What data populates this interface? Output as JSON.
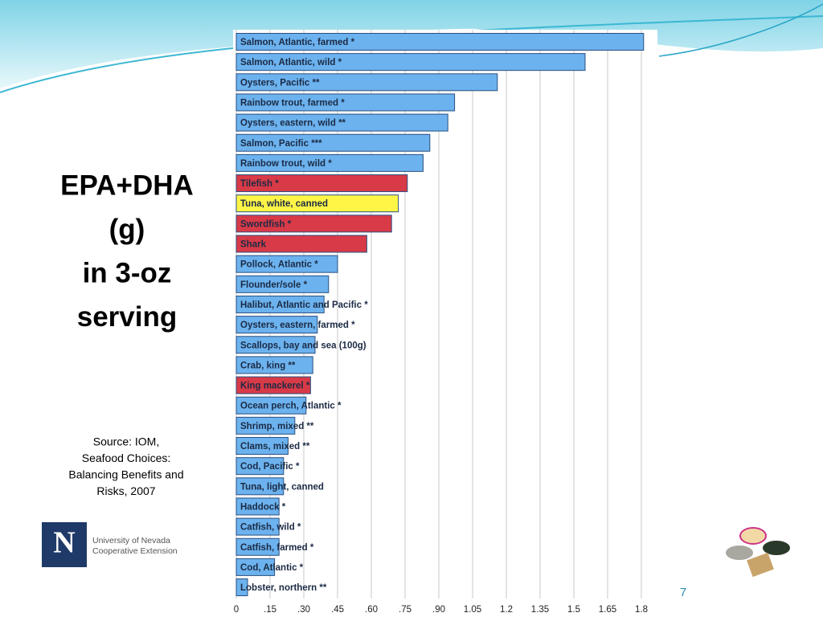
{
  "title_lines": [
    "EPA+DHA",
    "(g)",
    "in 3-oz",
    "serving"
  ],
  "source_lines": [
    "Source: IOM,",
    "Seafood Choices:",
    "Balancing Benefits and",
    "Risks, 2007"
  ],
  "logo": {
    "mark": "N",
    "lines": [
      "University of Nevada",
      "Cooperative Extension"
    ]
  },
  "page_number": "7",
  "chart_data": {
    "type": "hbar",
    "categories": [
      "Salmon, Atlantic, farmed *",
      "Salmon, Atlantic, wild *",
      "Oysters, Pacific **",
      "Rainbow trout, farmed *",
      "Oysters, eastern, wild **",
      "Salmon, Pacific ***",
      "Rainbow trout, wild *",
      "Tilefish *",
      "Tuna, white, canned",
      "Swordfish *",
      "Shark",
      "Pollock, Atlantic *",
      "Flounder/sole *",
      "Halibut, Atlantic and Pacific *",
      "Oysters, eastern, farmed *",
      "Scallops, bay and sea (100g)",
      "Crab, king **",
      "King mackerel *",
      "Ocean perch, Atlantic *",
      "Shrimp, mixed **",
      "Clams, mixed **",
      "Cod, Pacific *",
      "Tuna, light, canned",
      "Haddock *",
      "Catfish, wild *",
      "Catfish, farmed *",
      "Cod, Atlantic *",
      "Lobster, northern **"
    ],
    "values": [
      1.81,
      1.55,
      1.16,
      0.97,
      0.94,
      0.86,
      0.83,
      0.76,
      0.72,
      0.69,
      0.58,
      0.45,
      0.41,
      0.39,
      0.36,
      0.35,
      0.34,
      0.33,
      0.31,
      0.26,
      0.23,
      0.21,
      0.21,
      0.19,
      0.19,
      0.19,
      0.17,
      0.05
    ],
    "colors": [
      "#6cb2ee",
      "#6cb2ee",
      "#6cb2ee",
      "#6cb2ee",
      "#6cb2ee",
      "#6cb2ee",
      "#6cb2ee",
      "#d83a47",
      "#fff547",
      "#d83a47",
      "#d83a47",
      "#6cb2ee",
      "#6cb2ee",
      "#6cb2ee",
      "#6cb2ee",
      "#6cb2ee",
      "#6cb2ee",
      "#d83a47",
      "#6cb2ee",
      "#6cb2ee",
      "#6cb2ee",
      "#6cb2ee",
      "#6cb2ee",
      "#6cb2ee",
      "#6cb2ee",
      "#6cb2ee",
      "#6cb2ee",
      "#6cb2ee"
    ],
    "xlim": [
      0,
      1.85
    ],
    "xticks": [
      0,
      {
        "value": 0.15,
        "label": ".15"
      },
      {
        "value": 0.3,
        "label": ".30"
      },
      {
        "value": 0.45,
        "label": ".45"
      },
      {
        "value": 0.6,
        "label": ".60"
      },
      {
        "value": 0.75,
        "label": ".75"
      },
      {
        "value": 0.9,
        "label": ".90"
      },
      1.05,
      1.2,
      1.35,
      1.5,
      1.65,
      1.8
    ],
    "grid": true
  }
}
